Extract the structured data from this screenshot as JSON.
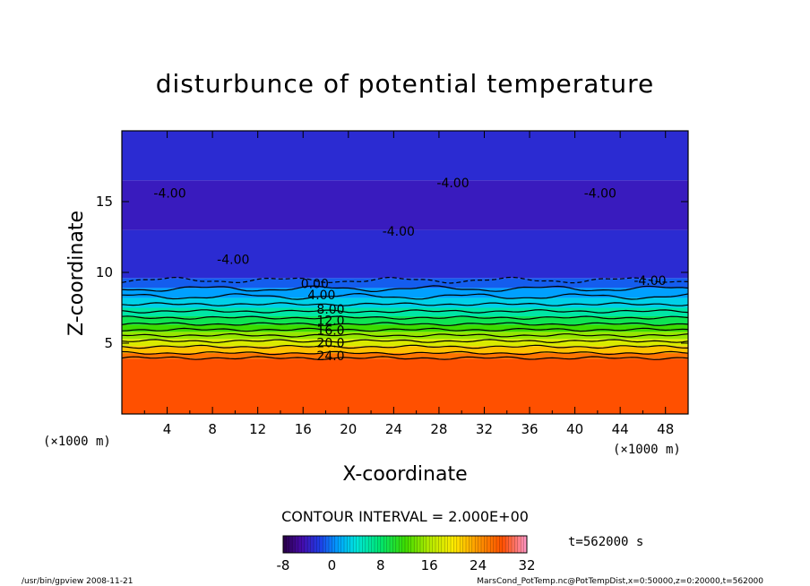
{
  "chart_data": {
    "type": "heatmap",
    "title": "disturbunce of potential temperature",
    "xlabel": "X-coordinate",
    "ylabel": "Z-coordinate",
    "x_unit": "(×1000 m)",
    "z_unit": "(×1000 m)",
    "xlim": [
      0,
      50
    ],
    "ylim": [
      0,
      20
    ],
    "x_ticks": [
      4,
      8,
      12,
      16,
      20,
      24,
      28,
      32,
      36,
      40,
      44,
      48
    ],
    "y_ticks": [
      5,
      10,
      15
    ],
    "contour_interval_text": "CONTOUR INTERVAL = 2.000E+00",
    "time_text": "t=562000 s",
    "colorbar": {
      "min": -8,
      "max": 32,
      "ticks": [
        -8,
        0,
        8,
        16,
        24,
        32
      ]
    },
    "layers": [
      {
        "z_bottom": 0,
        "z_top": 3.9,
        "value": 28
      },
      {
        "z_bottom": 3.9,
        "z_top": 4.3,
        "value": 26
      },
      {
        "z_bottom": 4.3,
        "z_top": 4.8,
        "value": 22
      },
      {
        "z_bottom": 4.8,
        "z_top": 5.3,
        "value": 18
      },
      {
        "z_bottom": 5.3,
        "z_top": 5.8,
        "value": 15
      },
      {
        "z_bottom": 5.8,
        "z_top": 6.3,
        "value": 12
      },
      {
        "z_bottom": 6.3,
        "z_top": 6.9,
        "value": 9
      },
      {
        "z_bottom": 6.9,
        "z_top": 7.5,
        "value": 6
      },
      {
        "z_bottom": 7.5,
        "z_top": 8.2,
        "value": 3
      },
      {
        "z_bottom": 8.2,
        "z_top": 8.9,
        "value": 1
      },
      {
        "z_bottom": 8.9,
        "z_top": 9.6,
        "value": -1
      },
      {
        "z_bottom": 9.6,
        "z_top": 13.0,
        "value": -3
      },
      {
        "z_bottom": 13.0,
        "z_top": 16.5,
        "value": -4
      },
      {
        "z_bottom": 16.5,
        "z_top": 20.0,
        "value": -3
      }
    ],
    "contour_levels": [
      24,
      22,
      20,
      18,
      16,
      14,
      12,
      10,
      8,
      6,
      4,
      2,
      0
    ],
    "contour_labels": [
      {
        "x": 17.2,
        "z": 3.8,
        "text": "24.0"
      },
      {
        "x": 17.2,
        "z": 4.7,
        "text": "20.0"
      },
      {
        "x": 17.2,
        "z": 5.6,
        "text": "16.0"
      },
      {
        "x": 17.2,
        "z": 6.3,
        "text": "12.0"
      },
      {
        "x": 17.2,
        "z": 7.1,
        "text": "8.00"
      },
      {
        "x": 16.4,
        "z": 8.1,
        "text": "4.00"
      },
      {
        "x": 15.8,
        "z": 8.9,
        "text": "0.00"
      },
      {
        "x": 8.4,
        "z": 10.6,
        "text": "-4.00"
      },
      {
        "x": 2.8,
        "z": 15.3,
        "text": "-4.00"
      },
      {
        "x": 23.0,
        "z": 12.6,
        "text": "-4.00"
      },
      {
        "x": 27.8,
        "z": 16.0,
        "text": "-4.00"
      },
      {
        "x": 40.8,
        "z": 15.3,
        "text": "-4.00"
      },
      {
        "x": 45.2,
        "z": 9.1,
        "text": "-4.00"
      }
    ]
  },
  "footer": {
    "left": "/usr/bin/gpview   2008-11-21",
    "right": "MarsCond_PotTemp.nc@PotTempDist,x=0:50000,z=0:20000,t=562000"
  },
  "colors": {
    "frame": "#000000",
    "background": "#ffffff"
  }
}
